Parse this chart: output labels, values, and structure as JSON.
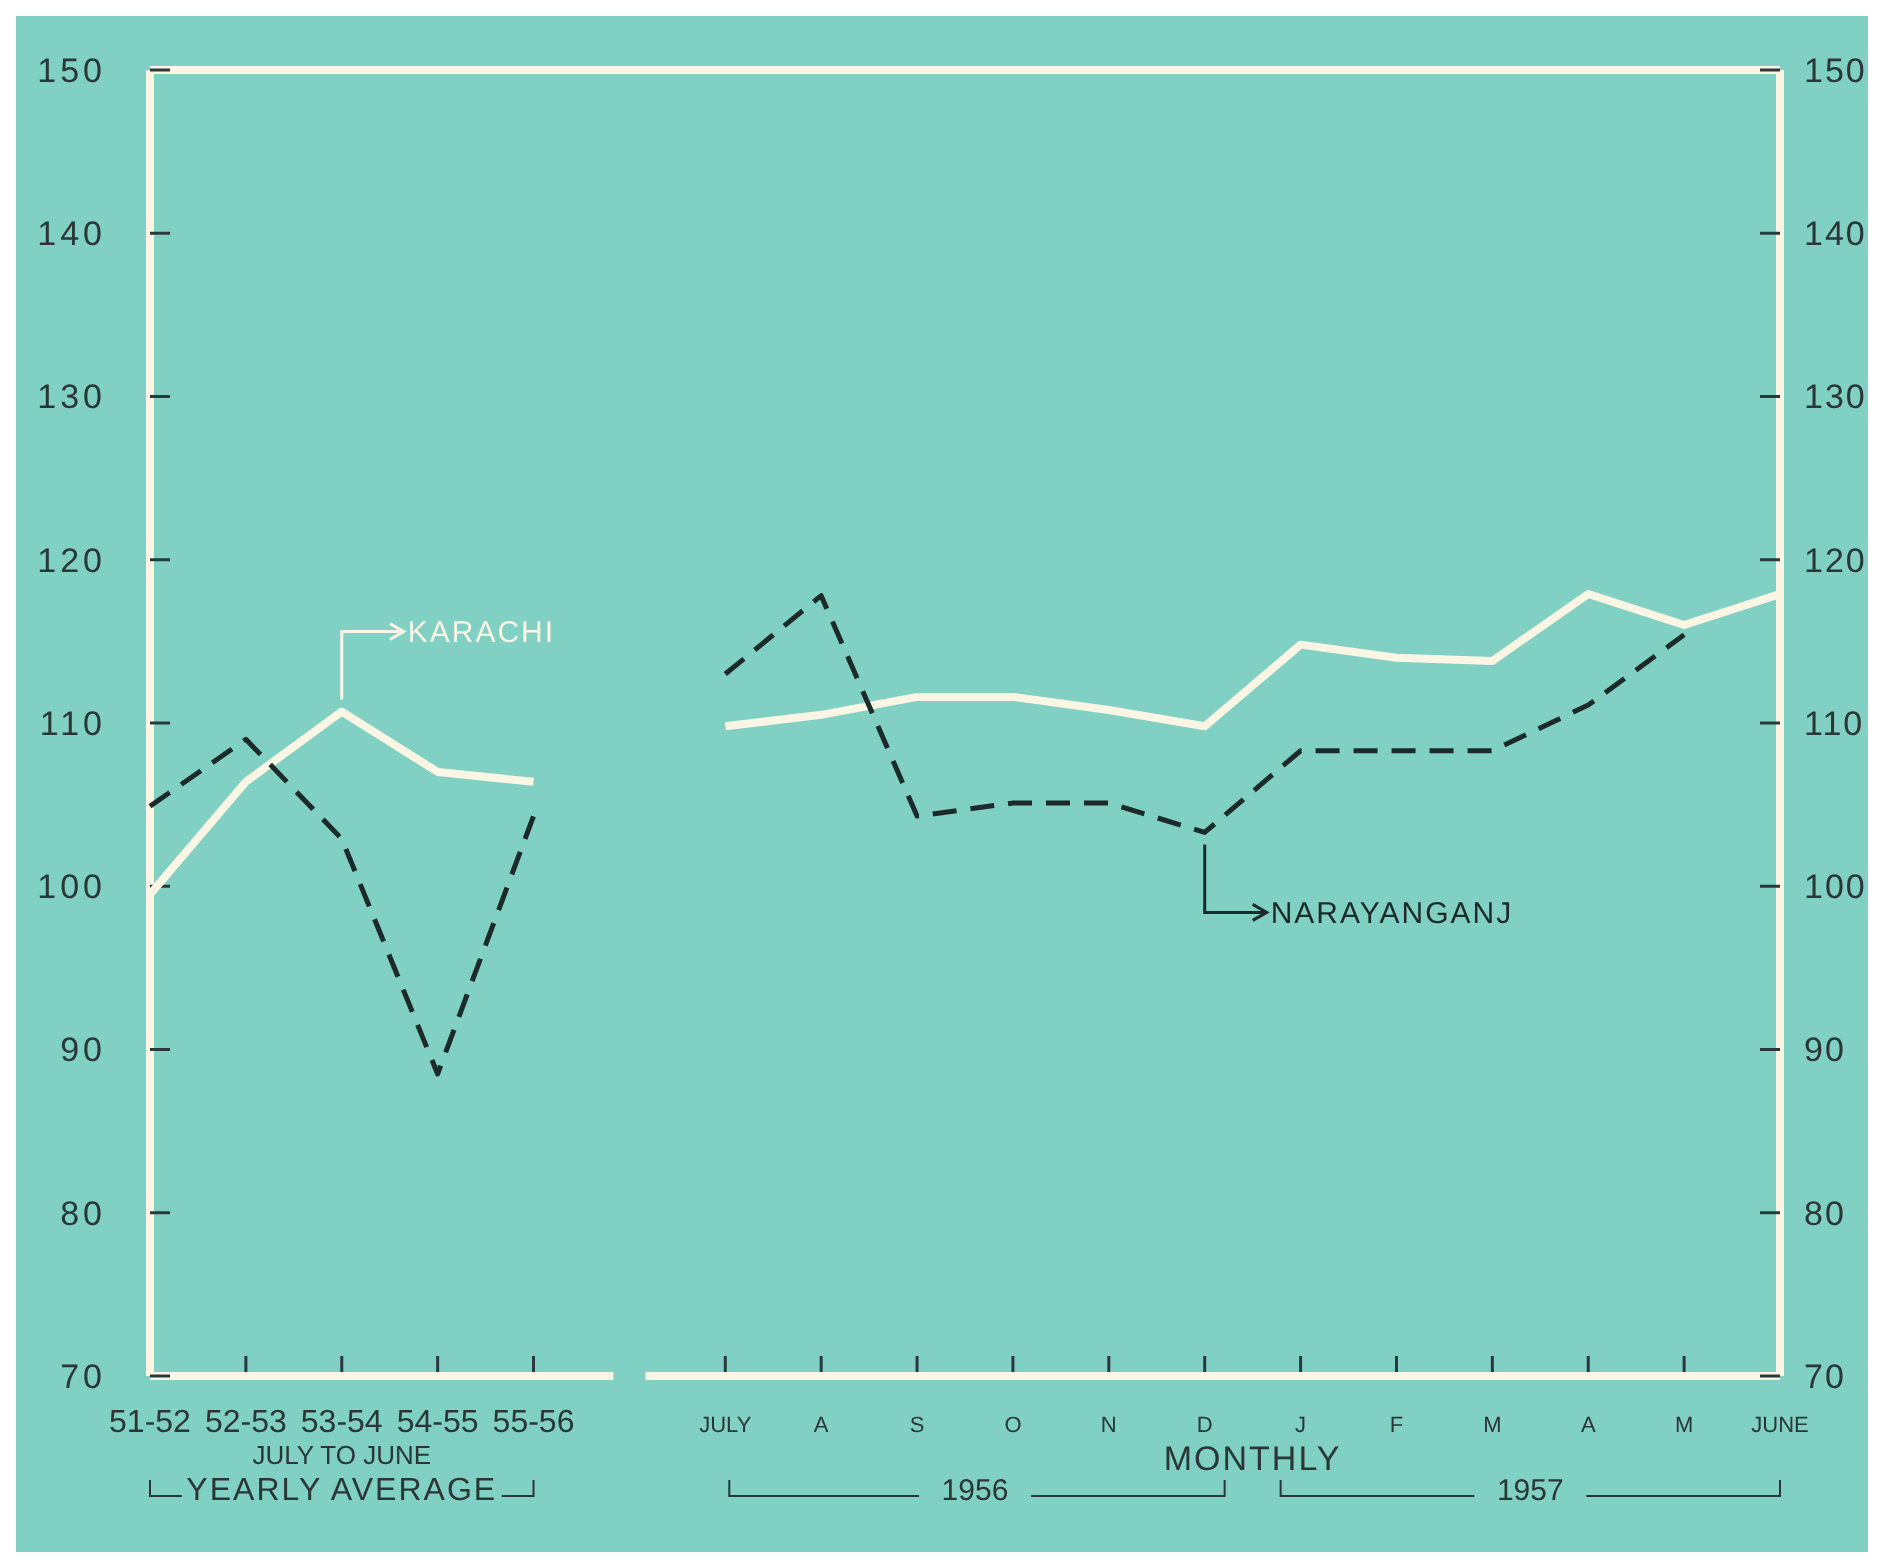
{
  "chart_data": {
    "type": "line",
    "categories": [
      "51-52",
      "52-53",
      "53-54",
      "54-55",
      "55-56",
      null,
      "JULY",
      "A",
      "S",
      "O",
      "N",
      "D",
      "J",
      "F",
      "M",
      "A",
      "M",
      "JUNE"
    ],
    "series": [
      {
        "name": "KARACHI",
        "color": "#fbf6e4",
        "line_style": "solid",
        "values": [
          99.5,
          106.4,
          110.7,
          107,
          106.4,
          null,
          109.8,
          110.5,
          111.6,
          111.6,
          110.8,
          109.8,
          114.8,
          114,
          113.8,
          117.9,
          116,
          117.9
        ]
      },
      {
        "name": "NARAYANGANJ",
        "color": "#1c2b2a",
        "line_style": "dashed",
        "values": [
          104.9,
          109,
          102.9,
          88.5,
          104.3,
          null,
          113,
          117.8,
          104.3,
          105.1,
          105.1,
          103.3,
          108.3,
          108.3,
          108.3,
          111.1,
          115.4,
          null
        ]
      }
    ],
    "ylim": [
      70,
      150
    ],
    "yticks": [
      70,
      80,
      90,
      100,
      110,
      120,
      130,
      140,
      150
    ],
    "y2lim": [
      70,
      150
    ],
    "y2ticks": [
      70,
      80,
      90,
      100,
      110,
      120,
      130,
      140,
      150
    ],
    "annotations": [
      "JULY TO JUNE",
      "YEARLY AVERAGE",
      "MONTHLY",
      "1956",
      "1957"
    ],
    "grid": false,
    "legend": "center",
    "marker": "none"
  }
}
